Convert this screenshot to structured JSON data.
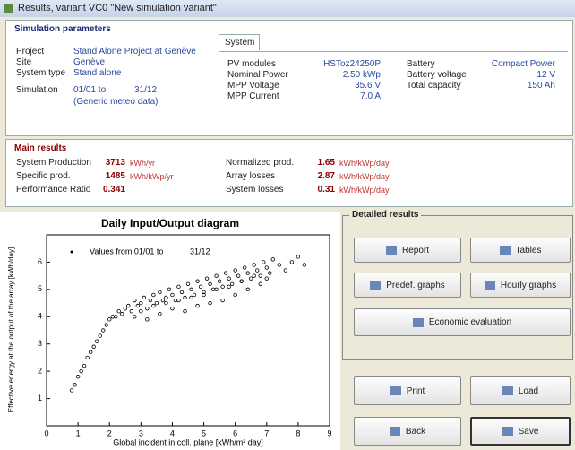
{
  "window": {
    "title": "Results, variant VC0  \"New simulation variant\""
  },
  "simulation_parameters": {
    "heading": "Simulation parameters",
    "rows": [
      [
        "Project",
        "Stand Alone Project at Genève"
      ],
      [
        "Site",
        "Genève"
      ],
      [
        "System type",
        "Stand alone"
      ]
    ],
    "simulation_label": "Simulation",
    "simulation_from": "01/01 to",
    "simulation_to": "31/12",
    "meteo": "(Generic meteo data)",
    "tab": "System",
    "system_rows": [
      [
        "PV modules",
        "HSToz24250P"
      ],
      [
        "Nominal Power",
        "2.50 kWp"
      ],
      [
        "MPP Voltage",
        "35.6 V"
      ],
      [
        "MPP Current",
        "7.0 A"
      ]
    ],
    "battery_rows": [
      [
        "Battery",
        "Compact Power"
      ],
      [
        "Battery voltage",
        "12  V"
      ],
      [
        "Total capacity",
        "150  Ah"
      ]
    ]
  },
  "main_results": {
    "heading": "Main results",
    "left": [
      {
        "label": "System Production",
        "value": "3713",
        "unit": "kWh/yr"
      },
      {
        "label": "Specific prod.",
        "value": "1485",
        "unit": "kWh/kWp/yr"
      },
      {
        "label": "Performance Ratio",
        "value": "0.341",
        "unit": ""
      }
    ],
    "right": [
      {
        "label": "Normalized prod.",
        "value": "1.65",
        "unit": "kWh/kWp/day"
      },
      {
        "label": "Array losses",
        "value": "2.87",
        "unit": "kWh/kWp/day"
      },
      {
        "label": "System losses",
        "value": "0.31",
        "unit": "kWh/kWp/day"
      }
    ]
  },
  "detailed_results": {
    "heading": "Detailed results",
    "buttons": [
      "Report",
      "Tables",
      "Predef. graphs",
      "Hourly graphs",
      "Economic evaluation",
      "Print",
      "Load",
      "Back",
      "Save"
    ]
  },
  "chart_data": {
    "type": "scatter",
    "title": "Daily Input/Output diagram",
    "annotation": "Values from 01/01 to",
    "annotation_end": "31/12",
    "xlabel": "Global incident in coll. plane [kWh/m² day]",
    "ylabel": "Effective energy at the output of the array [kWh/day]",
    "xlim": [
      0,
      9
    ],
    "ylim": [
      0,
      7
    ],
    "xticks": [
      0,
      1,
      2,
      3,
      4,
      5,
      6,
      7,
      8,
      9
    ],
    "yticks": [
      1,
      2,
      3,
      4,
      5,
      6
    ],
    "x": [
      0.8,
      0.9,
      1.0,
      1.1,
      1.2,
      1.3,
      1.4,
      1.5,
      1.6,
      1.7,
      1.8,
      1.9,
      2.0,
      2.1,
      2.2,
      2.3,
      2.4,
      2.5,
      2.6,
      2.7,
      2.8,
      2.9,
      3.0,
      3.1,
      3.2,
      3.3,
      3.4,
      3.5,
      3.6,
      3.7,
      3.8,
      3.9,
      4.0,
      4.1,
      4.2,
      4.3,
      4.4,
      4.5,
      4.6,
      4.7,
      4.8,
      4.9,
      5.0,
      5.1,
      5.2,
      5.3,
      5.4,
      5.5,
      5.6,
      5.7,
      5.8,
      5.9,
      6.0,
      6.1,
      6.2,
      6.3,
      6.4,
      6.5,
      6.6,
      6.7,
      6.8,
      6.9,
      7.0,
      7.1,
      7.2,
      7.4,
      7.6,
      7.8,
      8.0,
      8.2,
      2.8,
      3.0,
      3.2,
      3.4,
      3.6,
      3.8,
      4.0,
      4.2,
      4.4,
      4.6,
      4.8,
      5.0,
      5.2,
      5.4,
      5.6,
      5.8,
      6.0,
      6.2,
      6.4,
      6.6,
      6.8,
      7.0
    ],
    "y": [
      1.3,
      1.5,
      1.8,
      2.0,
      2.2,
      2.5,
      2.7,
      2.9,
      3.1,
      3.3,
      3.5,
      3.7,
      3.9,
      4.0,
      4.0,
      4.2,
      4.1,
      4.3,
      4.4,
      4.2,
      4.6,
      4.4,
      4.5,
      4.7,
      4.3,
      4.6,
      4.8,
      4.5,
      4.9,
      4.6,
      4.7,
      5.0,
      4.8,
      4.6,
      5.1,
      4.9,
      4.7,
      5.2,
      5.0,
      4.8,
      5.3,
      5.1,
      4.9,
      5.4,
      5.2,
      5.0,
      5.5,
      5.3,
      5.1,
      5.6,
      5.4,
      5.2,
      5.7,
      5.5,
      5.3,
      5.8,
      5.6,
      5.4,
      5.9,
      5.7,
      5.5,
      6.0,
      5.8,
      5.6,
      6.1,
      5.9,
      5.7,
      6.0,
      6.2,
      5.9,
      4.0,
      4.2,
      3.9,
      4.4,
      4.1,
      4.5,
      4.3,
      4.6,
      4.2,
      4.7,
      4.4,
      4.8,
      4.5,
      5.0,
      4.6,
      5.1,
      4.8,
      5.3,
      5.0,
      5.5,
      5.2,
      5.4
    ]
  }
}
